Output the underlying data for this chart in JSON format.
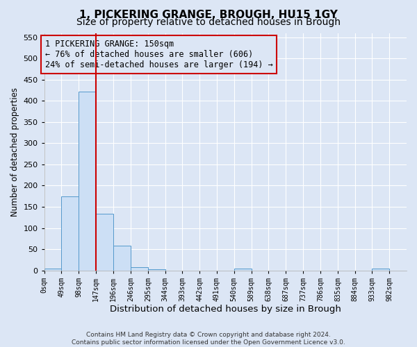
{
  "title_line1": "1, PICKERING GRANGE, BROUGH, HU15 1GY",
  "title_line2": "Size of property relative to detached houses in Brough",
  "xlabel": "Distribution of detached houses by size in Brough",
  "ylabel": "Number of detached properties",
  "bar_values": [
    5,
    175,
    422,
    133,
    58,
    8,
    3,
    0,
    0,
    0,
    0,
    5,
    0,
    0,
    0,
    0,
    0,
    0,
    0,
    5
  ],
  "bin_edges": [
    0,
    49,
    98,
    147,
    196,
    246,
    295,
    344,
    393,
    442,
    491,
    540,
    589,
    638,
    687,
    737,
    786,
    835,
    884,
    933,
    982
  ],
  "tick_labels": [
    "0sqm",
    "49sqm",
    "98sqm",
    "147sqm",
    "196sqm",
    "246sqm",
    "295sqm",
    "344sqm",
    "393sqm",
    "442sqm",
    "491sqm",
    "540sqm",
    "589sqm",
    "638sqm",
    "687sqm",
    "737sqm",
    "786sqm",
    "835sqm",
    "884sqm",
    "933sqm",
    "982sqm"
  ],
  "bar_color": "#ccdff5",
  "bar_edgecolor": "#5599cc",
  "property_line_x": 147,
  "property_line_color": "#cc0000",
  "ylim": [
    0,
    560
  ],
  "yticks": [
    0,
    50,
    100,
    150,
    200,
    250,
    300,
    350,
    400,
    450,
    500,
    550
  ],
  "annotation_text": "1 PICKERING GRANGE: 150sqm\n← 76% of detached houses are smaller (606)\n24% of semi-detached houses are larger (194) →",
  "annotation_box_color": "#cc0000",
  "footer_text": "Contains HM Land Registry data © Crown copyright and database right 2024.\nContains public sector information licensed under the Open Government Licence v3.0.",
  "background_color": "#dce6f5",
  "grid_color": "#ffffff",
  "title_fontsize": 11,
  "subtitle_fontsize": 10,
  "ylabel_fontsize": 8.5,
  "xlabel_fontsize": 9.5,
  "annot_fontsize": 8.5
}
